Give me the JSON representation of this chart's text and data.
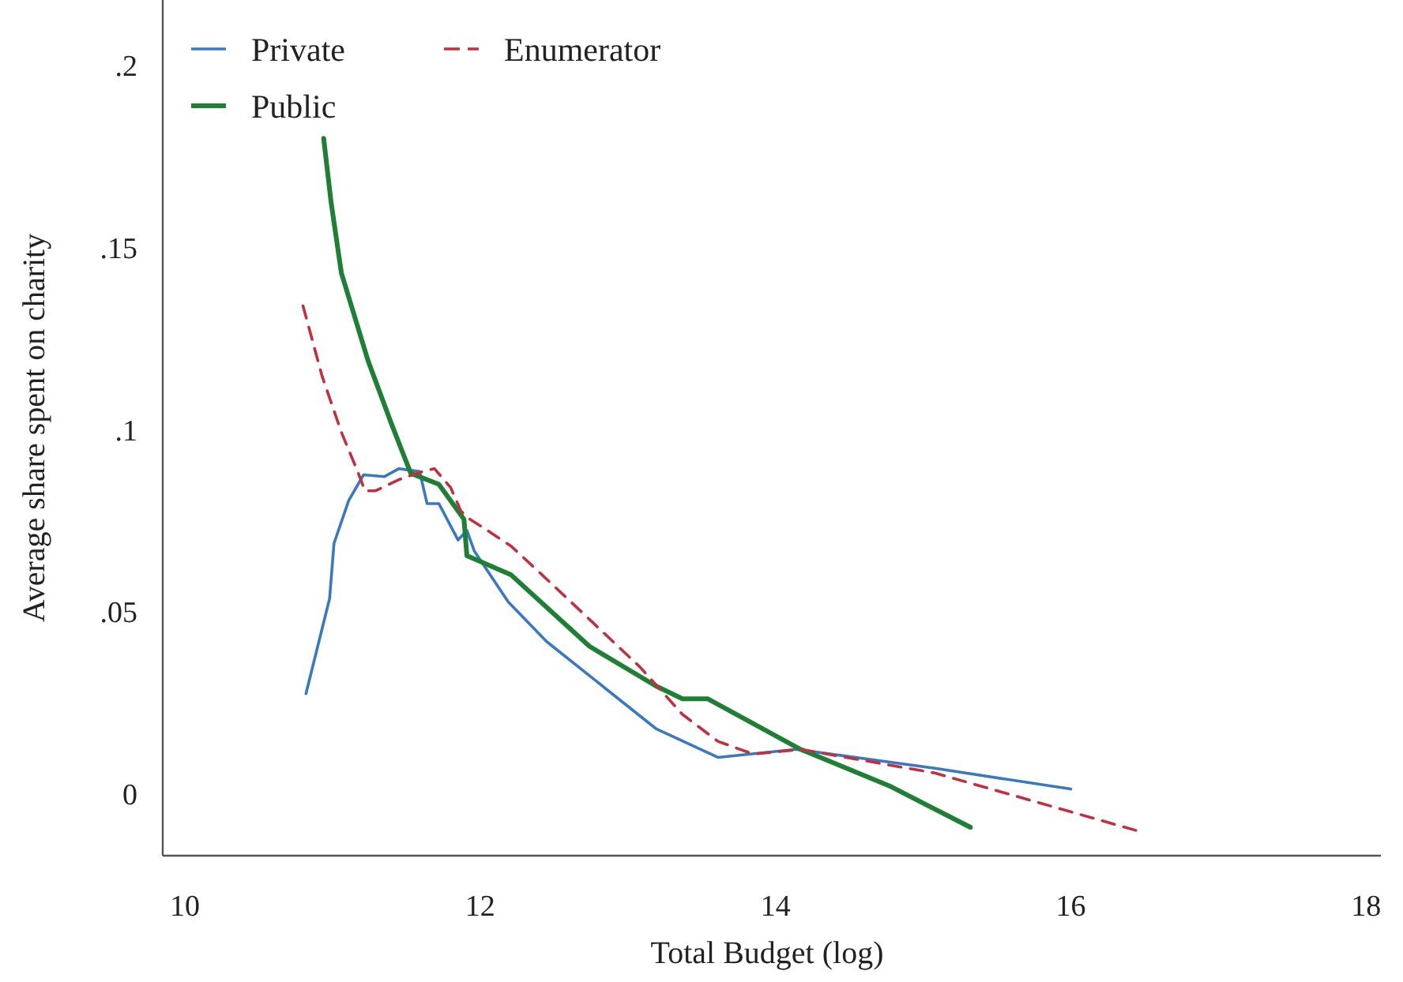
{
  "chart_data": {
    "type": "line",
    "xlabel": "Total Budget (log)",
    "ylabel": "Average share spent on charity",
    "xlim": [
      9.85,
      18.1
    ],
    "ylim": [
      -0.017,
      0.218
    ],
    "xticks": [
      10,
      12,
      14,
      16,
      18
    ],
    "yticks": [
      0,
      {
        "value": 0.05,
        "label": ".05"
      },
      {
        "value": 0.1,
        "label": ".1"
      },
      {
        "value": 0.15,
        "label": ".15"
      },
      {
        "value": 0.2,
        "label": ".2"
      }
    ],
    "grid": false,
    "legend": "top left",
    "marker": "none",
    "series": [
      {
        "name": "Private",
        "color": "#3a78c0",
        "line_style": "solid",
        "x": [
          10.82,
          10.98,
          11.01,
          11.11,
          11.21,
          11.35,
          11.45,
          11.59,
          11.64,
          11.72,
          11.85,
          11.91,
          11.96,
          12.19,
          12.45,
          12.8,
          13.19,
          13.61,
          14.14,
          15.08,
          16.0
        ],
        "values": [
          0.0275,
          0.0536,
          0.0688,
          0.0806,
          0.0876,
          0.0871,
          0.0893,
          0.0885,
          0.0797,
          0.0797,
          0.0697,
          0.0723,
          0.0667,
          0.0527,
          0.0418,
          0.0305,
          0.0179,
          0.01,
          0.0122,
          0.007,
          0.0013
        ]
      },
      {
        "name": "Public",
        "color": "#1f7f35",
        "line_style": "solid",
        "x": [
          10.94,
          10.99,
          11.06,
          11.24,
          11.4,
          11.53,
          11.72,
          11.89,
          11.91,
          12.21,
          12.74,
          13.19,
          13.37,
          13.54,
          14.17,
          14.77,
          15.32
        ],
        "values": [
          0.18,
          0.1625,
          0.143,
          0.119,
          0.1015,
          0.088,
          0.085,
          0.0754,
          0.0654,
          0.0601,
          0.0405,
          0.0296,
          0.0261,
          0.0261,
          0.0122,
          0.0022,
          -0.0092
        ]
      },
      {
        "name": "Enumerator",
        "color": "#c0303f",
        "line_style": "dashed",
        "x": [
          10.8,
          10.93,
          11.06,
          11.17,
          11.22,
          11.29,
          11.45,
          11.61,
          11.69,
          11.8,
          11.87,
          11.93,
          12.05,
          12.21,
          12.42,
          12.74,
          13.08,
          13.37,
          13.61,
          13.85,
          14.17,
          15.08,
          16.48
        ],
        "values": [
          0.134,
          0.1146,
          0.0993,
          0.0885,
          0.0832,
          0.0832,
          0.0863,
          0.0885,
          0.0893,
          0.0841,
          0.0776,
          0.0754,
          0.0723,
          0.068,
          0.0601,
          0.0479,
          0.0349,
          0.0218,
          0.0144,
          0.0109,
          0.0122,
          0.0057,
          -0.0105
        ]
      }
    ]
  }
}
